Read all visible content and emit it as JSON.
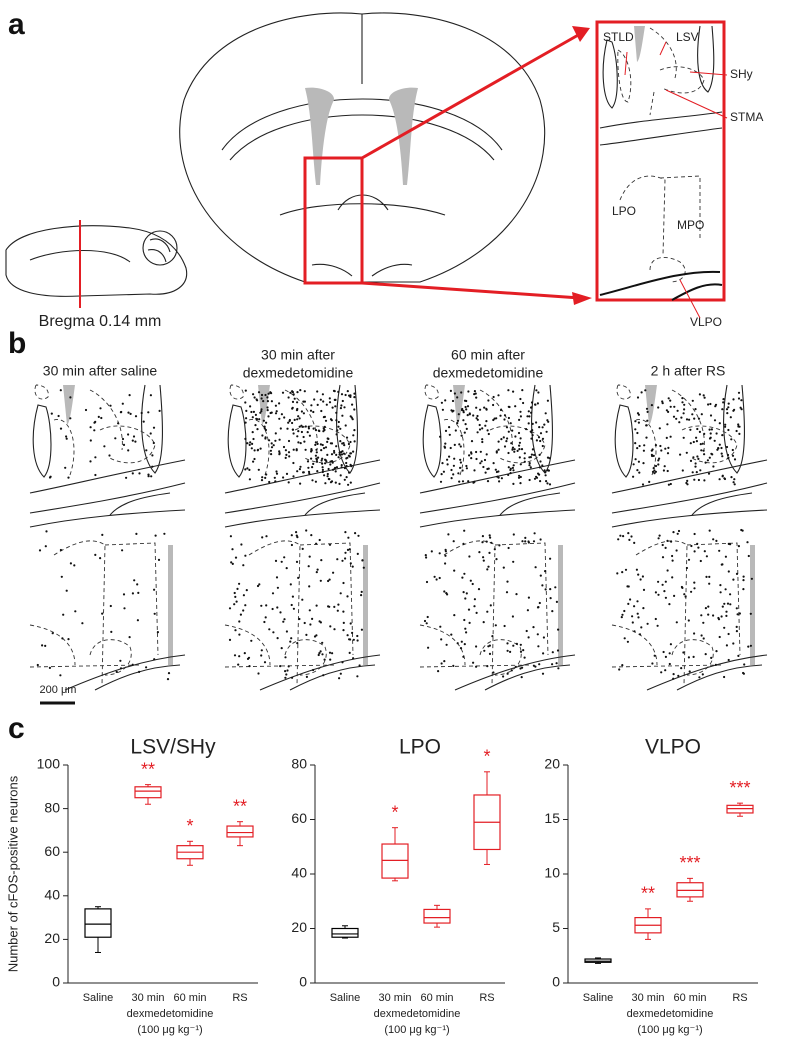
{
  "panel_labels": [
    "a",
    "b",
    "c"
  ],
  "panel_a": {
    "bregma": "Bregma 0.14 mm",
    "regions": [
      "STLD",
      "LSV",
      "SHy",
      "STMA",
      "LPO",
      "MPO",
      "VLPO"
    ]
  },
  "panel_b": {
    "conditions": [
      [
        "30 min after saline"
      ],
      [
        "30 min after",
        "dexmedetomidine"
      ],
      [
        "60 min after",
        "dexmedetomidine"
      ],
      [
        "2 h after RS"
      ]
    ],
    "scale_bar": "200 μm"
  },
  "chart_data": [
    {
      "type": "box",
      "title": "LSV/SHy",
      "y_label": "Number of cFOS-positive neurons",
      "categories": [
        "Saline",
        "30 min",
        "60 min",
        "RS"
      ],
      "x_note": [
        "dexmedetomidine",
        "(100 μg kg⁻¹)"
      ],
      "colors": [
        "#000000",
        "#e31e24",
        "#e31e24",
        "#e31e24"
      ],
      "boxes": [
        {
          "min": 14,
          "q1": 21,
          "median": 27,
          "q3": 34,
          "max": 35
        },
        {
          "min": 82,
          "q1": 85,
          "median": 88,
          "q3": 90,
          "max": 91
        },
        {
          "min": 54,
          "q1": 57,
          "median": 60,
          "q3": 63,
          "max": 65
        },
        {
          "min": 63,
          "q1": 67,
          "median": 69,
          "q3": 72,
          "max": 74
        }
      ],
      "significance": [
        null,
        "**",
        "*",
        "**"
      ],
      "ylim": [
        0,
        100
      ],
      "yticks": [
        0,
        20,
        40,
        60,
        80,
        100
      ]
    },
    {
      "type": "box",
      "title": "LPO",
      "categories": [
        "Saline",
        "30 min",
        "60 min",
        "RS"
      ],
      "x_note": [
        "dexmedetomidine",
        "(100 μg kg⁻¹)"
      ],
      "colors": [
        "#000000",
        "#e31e24",
        "#e31e24",
        "#e31e24"
      ],
      "boxes": [
        {
          "min": 16.5,
          "q1": 16.8,
          "median": 18,
          "q3": 20,
          "max": 21
        },
        {
          "min": 37.5,
          "q1": 38.5,
          "median": 45,
          "q3": 51,
          "max": 57
        },
        {
          "min": 20.5,
          "q1": 22,
          "median": 24,
          "q3": 27,
          "max": 28.5
        },
        {
          "min": 43.5,
          "q1": 49,
          "median": 59,
          "q3": 69,
          "max": 77.5
        }
      ],
      "significance": [
        null,
        "*",
        null,
        "*"
      ],
      "ylim": [
        0,
        80
      ],
      "yticks": [
        0,
        20,
        40,
        60,
        80
      ]
    },
    {
      "type": "box",
      "title": "VLPO",
      "categories": [
        "Saline",
        "30 min",
        "60 min",
        "RS"
      ],
      "x_note": [
        "dexmedetomidine",
        "(100 μg kg⁻¹)"
      ],
      "colors": [
        "#000000",
        "#e31e24",
        "#e31e24",
        "#e31e24"
      ],
      "boxes": [
        {
          "min": 1.8,
          "q1": 1.9,
          "median": 2.0,
          "q3": 2.2,
          "max": 2.3
        },
        {
          "min": 4.0,
          "q1": 4.6,
          "median": 5.3,
          "q3": 6.0,
          "max": 6.8
        },
        {
          "min": 7.5,
          "q1": 7.9,
          "median": 8.5,
          "q3": 9.2,
          "max": 9.6
        },
        {
          "min": 15.3,
          "q1": 15.6,
          "median": 16.0,
          "q3": 16.3,
          "max": 16.5
        }
      ],
      "significance": [
        null,
        "**",
        "***",
        "***"
      ],
      "ylim": [
        0,
        20
      ],
      "yticks": [
        0,
        5,
        10,
        15,
        20
      ]
    }
  ]
}
